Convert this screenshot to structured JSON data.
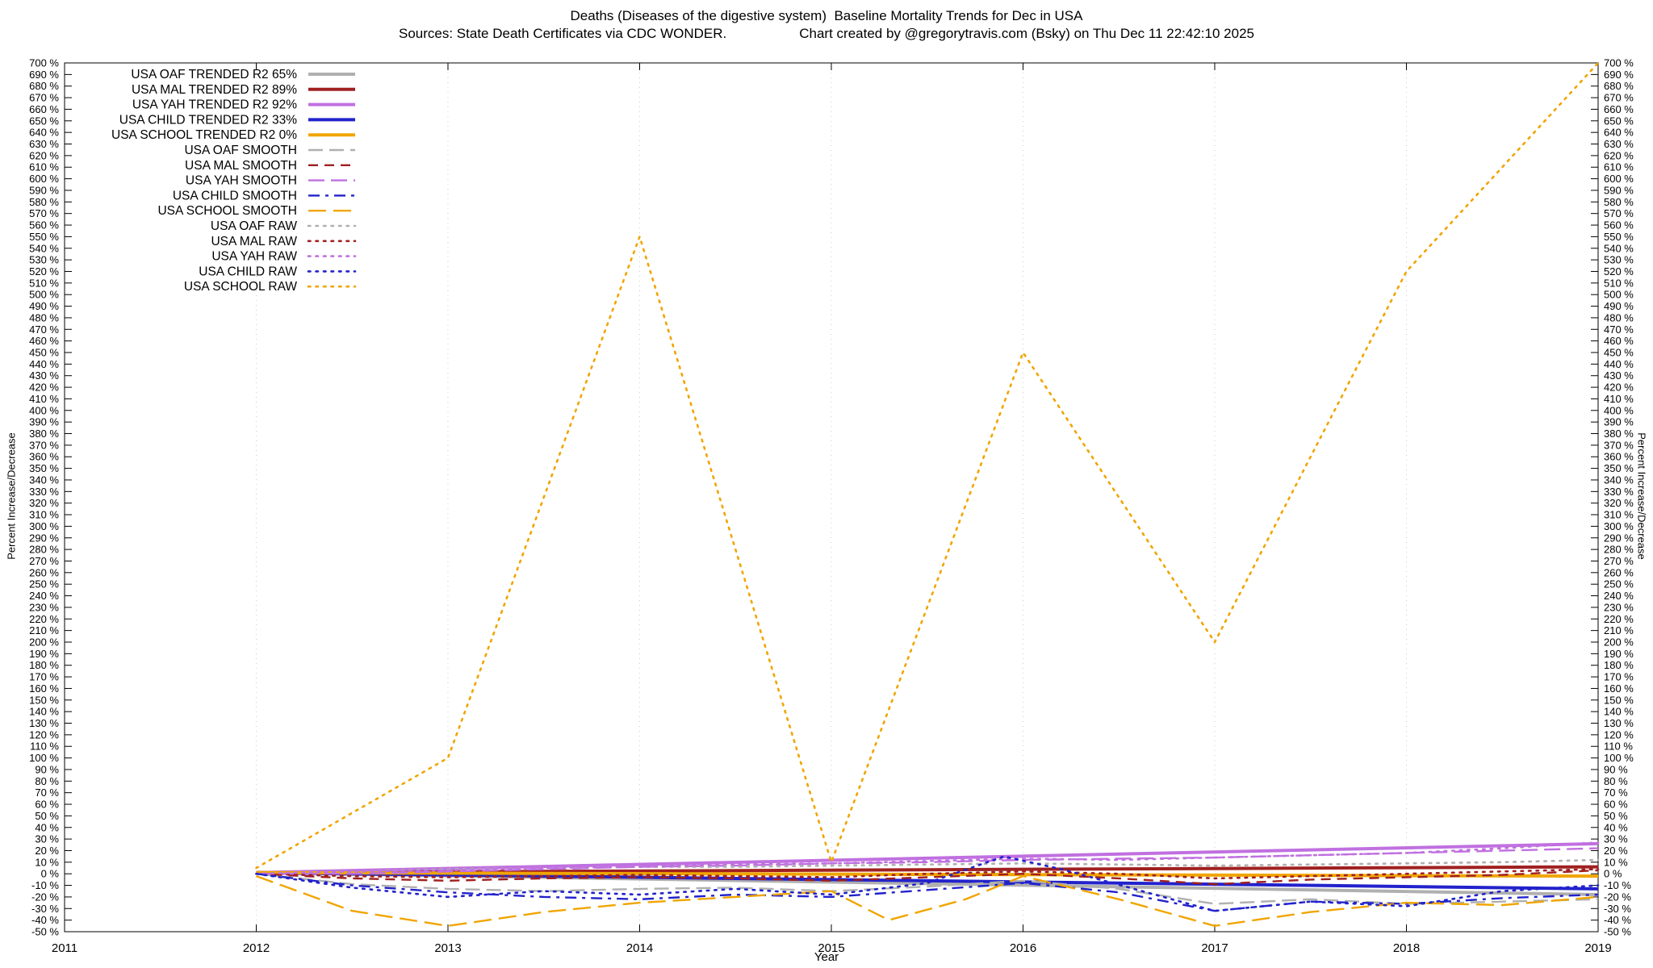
{
  "header": {
    "title": "Deaths (Diseases of the digestive system)  Baseline Mortality Trends for Dec in USA",
    "sources": "Sources: State Death Certificates via CDC WONDER.",
    "credit": "Chart created by @gregorytravis.com (Bsky) on Thu Dec 11 22:42:10 2025"
  },
  "chart_data": {
    "type": "line",
    "title": "Deaths (Diseases of the digestive system)  Baseline Mortality Trends for Dec in USA",
    "xlabel": "Year",
    "ylabel_left": "Percent Increase/Decrease",
    "ylabel_right": "Percent Increase/Decrease",
    "xlim": [
      2011,
      2019
    ],
    "ylim": [
      -50,
      700
    ],
    "x_tick_step": 1,
    "y_tick_step": 10,
    "y_tick_suffix": " %",
    "grid": "vertical-dotted",
    "legend_position": "top-left",
    "series": [
      {
        "name": "USA OAF TRENDED R2 65%",
        "style": "trended",
        "color": "#b0b0b0",
        "x": [
          2012,
          2019
        ],
        "y": [
          1,
          -18
        ]
      },
      {
        "name": "USA MAL TRENDED R2 89%",
        "style": "trended",
        "color": "#a02020",
        "x": [
          2012,
          2019
        ],
        "y": [
          1,
          6
        ]
      },
      {
        "name": "USA YAH TRENDED R2 92%",
        "style": "trended",
        "color": "#c070e0",
        "x": [
          2012,
          2019
        ],
        "y": [
          1,
          26
        ]
      },
      {
        "name": "USA CHILD TRENDED R2 33%",
        "style": "trended",
        "color": "#2222cc",
        "x": [
          2012,
          2019
        ],
        "y": [
          1,
          -13
        ]
      },
      {
        "name": "USA SCHOOL TRENDED R2  0%",
        "style": "trended",
        "color": "#f0a500",
        "x": [
          2012,
          2019
        ],
        "y": [
          1,
          -2
        ]
      },
      {
        "name": "USA OAF SMOOTH",
        "style": "smooth",
        "color": "#b0b0b0",
        "x": [
          2012,
          2012.5,
          2013,
          2013.5,
          2014,
          2014.5,
          2015,
          2015.5,
          2016,
          2016.5,
          2017,
          2017.5,
          2018,
          2018.5,
          2019
        ],
        "y": [
          0,
          -9,
          -13,
          -15,
          -13,
          -12,
          -15,
          -11,
          -6,
          -13,
          -26,
          -22,
          -26,
          -24,
          -22
        ]
      },
      {
        "name": "USA MAL SMOOTH",
        "style": "smooth",
        "color": "#a02020",
        "x": [
          2012,
          2012.5,
          2013,
          2013.5,
          2014,
          2014.5,
          2015,
          2015.5,
          2016,
          2016.5,
          2017,
          2017.5,
          2018,
          2018.5,
          2019
        ],
        "y": [
          0,
          -4,
          -6,
          -4,
          -3,
          -4,
          -6,
          -3,
          0,
          -4,
          -9,
          -5,
          -3,
          -1,
          3
        ]
      },
      {
        "name": "USA YAH SMOOTH",
        "style": "smooth",
        "color": "#c070e0",
        "x": [
          2012,
          2012.5,
          2013,
          2013.5,
          2014,
          2014.5,
          2015,
          2015.5,
          2016,
          2016.5,
          2017,
          2017.5,
          2018,
          2018.5,
          2019
        ],
        "y": [
          0,
          0,
          2,
          4,
          6,
          7,
          9,
          10,
          12,
          13,
          14,
          16,
          18,
          20,
          22
        ]
      },
      {
        "name": "USA CHILD SMOOTH",
        "style": "smooth",
        "color": "#2222cc",
        "x": [
          2012,
          2012.5,
          2013,
          2013.5,
          2014,
          2014.5,
          2015,
          2015.5,
          2016,
          2016.5,
          2017,
          2017.5,
          2018,
          2018.5,
          2019
        ],
        "y": [
          0,
          -10,
          -16,
          -20,
          -22,
          -18,
          -20,
          -14,
          -8,
          -16,
          -32,
          -24,
          -26,
          -21,
          -18
        ]
      },
      {
        "name": "USA SCHOOL SMOOTH",
        "style": "smooth",
        "color": "#f0a500",
        "x": [
          2012,
          2012.5,
          2013,
          2013.5,
          2014,
          2014.5,
          2015,
          2015.3,
          2015.7,
          2016,
          2016.5,
          2017,
          2017.5,
          2018,
          2018.5,
          2019
        ],
        "y": [
          -2,
          -32,
          -45,
          -33,
          -25,
          -20,
          -15,
          -40,
          -22,
          -2,
          -22,
          -45,
          -33,
          -25,
          -27,
          -20
        ]
      },
      {
        "name": "USA OAF RAW",
        "style": "raw",
        "color": "#b0b0b0",
        "x": [
          2012,
          2012.5,
          2013,
          2013.5,
          2014,
          2014.5,
          2015,
          2015.5,
          2016,
          2016.5,
          2017,
          2017.5,
          2018,
          2018.5,
          2019
        ],
        "y": [
          0,
          2,
          4,
          5,
          6,
          6,
          7,
          8,
          9,
          8,
          7,
          8,
          9,
          10,
          12
        ]
      },
      {
        "name": "USA MAL RAW",
        "style": "raw",
        "color": "#a02020",
        "x": [
          2012,
          2012.5,
          2013,
          2013.5,
          2014,
          2014.5,
          2015,
          2015.5,
          2016,
          2016.5,
          2017,
          2017.5,
          2018,
          2018.5,
          2019
        ],
        "y": [
          0,
          -2,
          -3,
          -2,
          -1,
          -2,
          -3,
          0,
          2,
          0,
          -4,
          -2,
          0,
          2,
          4
        ]
      },
      {
        "name": "USA YAH RAW",
        "style": "raw",
        "color": "#c070e0",
        "x": [
          2012,
          2012.5,
          2013,
          2013.5,
          2014,
          2014.5,
          2015,
          2015.5,
          2016,
          2016.5,
          2017,
          2017.5,
          2018,
          2018.5,
          2019
        ],
        "y": [
          0,
          2,
          3,
          5,
          6,
          8,
          9,
          11,
          13,
          12,
          14,
          16,
          18,
          22,
          27
        ]
      },
      {
        "name": "USA CHILD RAW",
        "style": "raw",
        "color": "#2222cc",
        "x": [
          2012,
          2012.5,
          2013,
          2013.5,
          2014,
          2014.5,
          2015,
          2015.5,
          2015.9,
          2016.2,
          2016.6,
          2017,
          2017.5,
          2018,
          2018.5,
          2019
        ],
        "y": [
          0,
          -12,
          -20,
          -15,
          -18,
          -13,
          -18,
          -8,
          15,
          4,
          -14,
          -32,
          -24,
          -28,
          -15,
          -10
        ]
      },
      {
        "name": "USA SCHOOL RAW",
        "style": "raw",
        "color": "#f0a500",
        "x": [
          2012,
          2013,
          2014,
          2015,
          2016,
          2017,
          2018,
          2019
        ],
        "y": [
          5,
          100,
          550,
          10,
          450,
          200,
          520,
          700
        ]
      }
    ]
  }
}
